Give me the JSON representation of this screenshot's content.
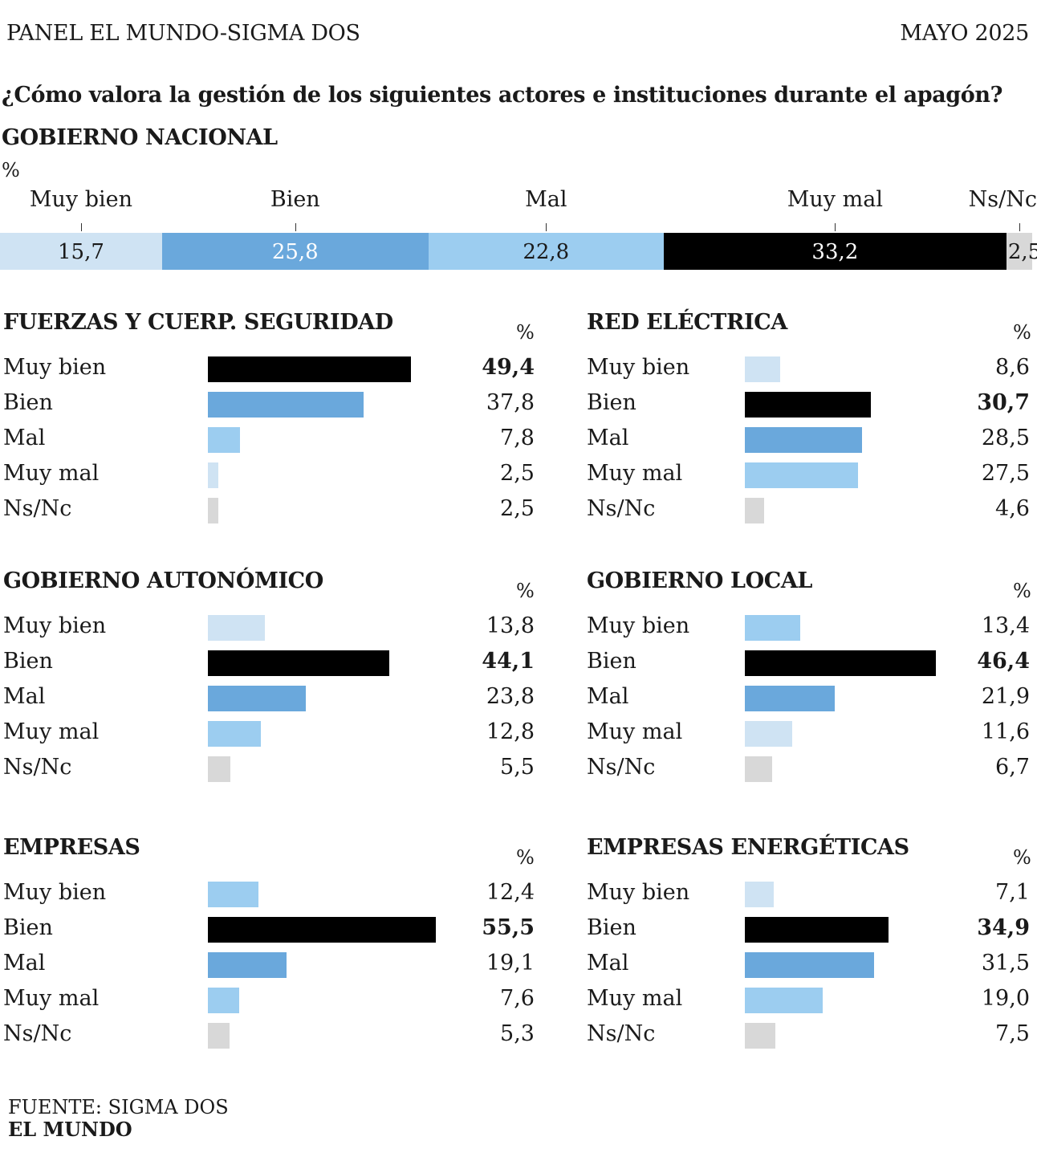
{
  "header": {
    "left": "PANEL EL MUNDO-SIGMA DOS",
    "right": "MAYO 2025"
  },
  "question": "¿Cómo valora la gestión de los siguientes actores e instituciones durante el apagón?",
  "colors": {
    "muy_bien": "#cfe3f3",
    "bien": "#6aa8dc",
    "mal": "#9ccdf0",
    "muy_mal": "#000000",
    "ns_nc": "#d8d8d8"
  },
  "chart_data": [
    {
      "type": "bar",
      "stacked": true,
      "title": "GOBIERNO NACIONAL",
      "unit": "%",
      "categories": [
        "Muy bien",
        "Bien",
        "Mal",
        "Muy mal",
        "Ns/Nc"
      ],
      "values": [
        15.7,
        25.8,
        22.8,
        33.2,
        2.5
      ],
      "value_labels": [
        "15,7",
        "25,8",
        "22,8",
        "33,2",
        "2,5"
      ],
      "colors": [
        "#cfe3f3",
        "#6aa8dc",
        "#9ccdf0",
        "#000000",
        "#d8d8d8"
      ],
      "text_colors": [
        "#1a1a1a",
        "#ffffff",
        "#1a1a1a",
        "#ffffff",
        "#1a1a1a"
      ]
    },
    {
      "type": "bar",
      "title": "FUERZAS Y CUERP. SEGURIDAD",
      "unit": "%",
      "categories": [
        "Muy bien",
        "Bien",
        "Mal",
        "Muy mal",
        "Ns/Nc"
      ],
      "values": [
        49.4,
        37.8,
        7.8,
        2.5,
        2.5
      ],
      "value_labels": [
        "49,4",
        "37,8",
        "7,8",
        "2,5",
        "2,5"
      ],
      "colors": [
        "#000000",
        "#6aa8dc",
        "#9ccdf0",
        "#cfe3f3",
        "#d8d8d8"
      ],
      "bold": [
        true,
        false,
        false,
        false,
        false
      ]
    },
    {
      "type": "bar",
      "title": "RED ELÉCTRICA",
      "unit": "%",
      "categories": [
        "Muy bien",
        "Bien",
        "Mal",
        "Muy mal",
        "Ns/Nc"
      ],
      "values": [
        8.6,
        30.7,
        28.5,
        27.5,
        4.6
      ],
      "value_labels": [
        "8,6",
        "30,7",
        "28,5",
        "27,5",
        "4,6"
      ],
      "colors": [
        "#cfe3f3",
        "#000000",
        "#6aa8dc",
        "#9ccdf0",
        "#d8d8d8"
      ],
      "bold": [
        false,
        true,
        false,
        false,
        false
      ]
    },
    {
      "type": "bar",
      "title": "GOBIERNO AUTONÓMICO",
      "unit": "%",
      "categories": [
        "Muy bien",
        "Bien",
        "Mal",
        "Muy mal",
        "Ns/Nc"
      ],
      "values": [
        13.8,
        44.1,
        23.8,
        12.8,
        5.5
      ],
      "value_labels": [
        "13,8",
        "44,1",
        "23,8",
        "12,8",
        "5,5"
      ],
      "colors": [
        "#cfe3f3",
        "#000000",
        "#6aa8dc",
        "#9ccdf0",
        "#d8d8d8"
      ],
      "bold": [
        false,
        true,
        false,
        false,
        false
      ]
    },
    {
      "type": "bar",
      "title": "GOBIERNO LOCAL",
      "unit": "%",
      "categories": [
        "Muy bien",
        "Bien",
        "Mal",
        "Muy mal",
        "Ns/Nc"
      ],
      "values": [
        13.4,
        46.4,
        21.9,
        11.6,
        6.7
      ],
      "value_labels": [
        "13,4",
        "46,4",
        "21,9",
        "11,6",
        "6,7"
      ],
      "colors": [
        "#9ccdf0",
        "#000000",
        "#6aa8dc",
        "#cfe3f3",
        "#d8d8d8"
      ],
      "bold": [
        false,
        true,
        false,
        false,
        false
      ]
    },
    {
      "type": "bar",
      "title": "EMPRESAS",
      "unit": "%",
      "categories": [
        "Muy bien",
        "Bien",
        "Mal",
        "Muy mal",
        "Ns/Nc"
      ],
      "values": [
        12.4,
        55.5,
        19.1,
        7.6,
        5.3
      ],
      "value_labels": [
        "12,4",
        "55,5",
        "19,1",
        "7,6",
        "5,3"
      ],
      "colors": [
        "#9ccdf0",
        "#000000",
        "#6aa8dc",
        "#9ccdf0",
        "#d8d8d8"
      ],
      "bold": [
        false,
        true,
        false,
        false,
        false
      ]
    },
    {
      "type": "bar",
      "title": "EMPRESAS ENERGÉTICAS",
      "unit": "%",
      "categories": [
        "Muy bien",
        "Bien",
        "Mal",
        "Muy mal",
        "Ns/Nc"
      ],
      "values": [
        7.1,
        34.9,
        31.5,
        19.0,
        7.5
      ],
      "value_labels": [
        "7,1",
        "34,9",
        "31,5",
        "19,0",
        "7,5"
      ],
      "colors": [
        "#cfe3f3",
        "#000000",
        "#6aa8dc",
        "#9ccdf0",
        "#d8d8d8"
      ],
      "bold": [
        false,
        true,
        false,
        false,
        false
      ]
    }
  ],
  "footer": {
    "source": "FUENTE: SIGMA DOS",
    "brand": "EL MUNDO"
  }
}
